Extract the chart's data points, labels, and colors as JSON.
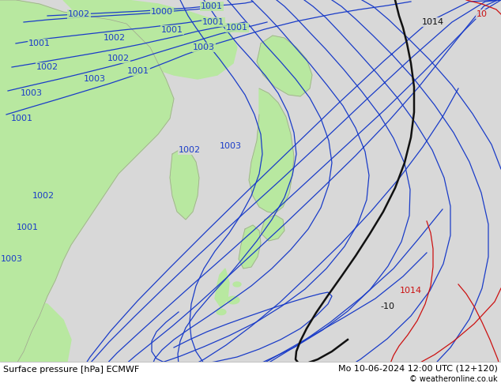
{
  "title_left": "Surface pressure [hPa] ECMWF",
  "title_right": "Mo 10-06-2024 12:00 UTC (12+120)",
  "copyright": "© weatheronline.co.uk",
  "bg_color": "#d8d8d8",
  "land_color": "#b8e8a0",
  "gray_land_color": "#c8c8b8",
  "blue_line_color": "#1a3cc8",
  "black_line_color": "#111111",
  "red_line_color": "#cc1111",
  "font_size_label": 8,
  "font_size_title": 8,
  "font_size_copyright": 7,
  "figsize": [
    6.34,
    4.9
  ],
  "dpi": 100
}
